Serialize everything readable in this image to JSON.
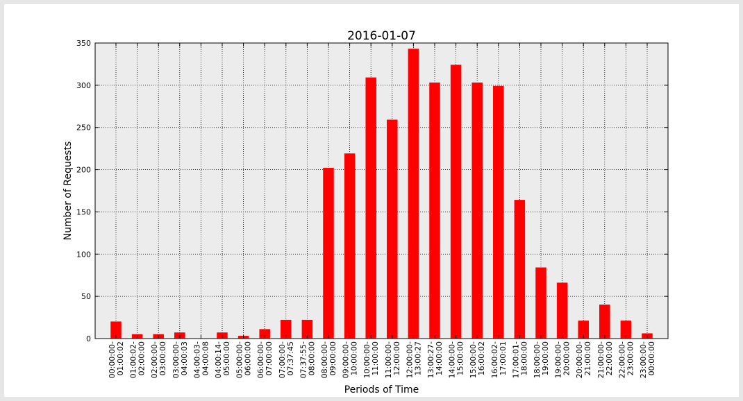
{
  "chart_data": {
    "type": "bar",
    "title": "2016-01-07",
    "xlabel": "Periods of Time",
    "ylabel": "Number of Requests",
    "ylim": [
      0,
      350
    ],
    "yticks": [
      0,
      50,
      100,
      150,
      200,
      250,
      300,
      350
    ],
    "grid": true,
    "bar_color": "#ff0000",
    "background_color": "#ececec",
    "categories": [
      [
        "00:00:00-",
        "01:00:02"
      ],
      [
        "01:00:02-",
        "02:00:00"
      ],
      [
        "02:00:00-",
        "03:00:00"
      ],
      [
        "03:00:00-",
        "04:00:03"
      ],
      [
        "04:00:03-",
        "04:00:08"
      ],
      [
        "04:00:14-",
        "05:00:00"
      ],
      [
        "05:00:00-",
        "06:00:00"
      ],
      [
        "06:00:00-",
        "07:00:00"
      ],
      [
        "07:00:00-",
        "07:37:45"
      ],
      [
        "07:37:55-",
        "08:00:00"
      ],
      [
        "08:00:00-",
        "09:00:00"
      ],
      [
        "09:00:00-",
        "10:00:00"
      ],
      [
        "10:00:00-",
        "11:00:00"
      ],
      [
        "11:00:00-",
        "12:00:00"
      ],
      [
        "12:00:00-",
        "13:00:27"
      ],
      [
        "13:00:27-",
        "14:00:00"
      ],
      [
        "14:00:00-",
        "15:00:00"
      ],
      [
        "15:00:00-",
        "16:00:02"
      ],
      [
        "16:00:02-",
        "17:00:01"
      ],
      [
        "17:00:01-",
        "18:00:00"
      ],
      [
        "18:00:00-",
        "19:00:00"
      ],
      [
        "19:00:00-",
        "20:00:00"
      ],
      [
        "20:00:00-",
        "21:00:00"
      ],
      [
        "21:00:00-",
        "22:00:00"
      ],
      [
        "22:00:00-",
        "23:00:00"
      ],
      [
        "23:00:00-",
        "00:00:00"
      ]
    ],
    "values": [
      20,
      5,
      5,
      7,
      0,
      7,
      3,
      11,
      22,
      22,
      202,
      219,
      309,
      259,
      343,
      303,
      324,
      303,
      299,
      164,
      84,
      66,
      21,
      40,
      21,
      6
    ]
  }
}
